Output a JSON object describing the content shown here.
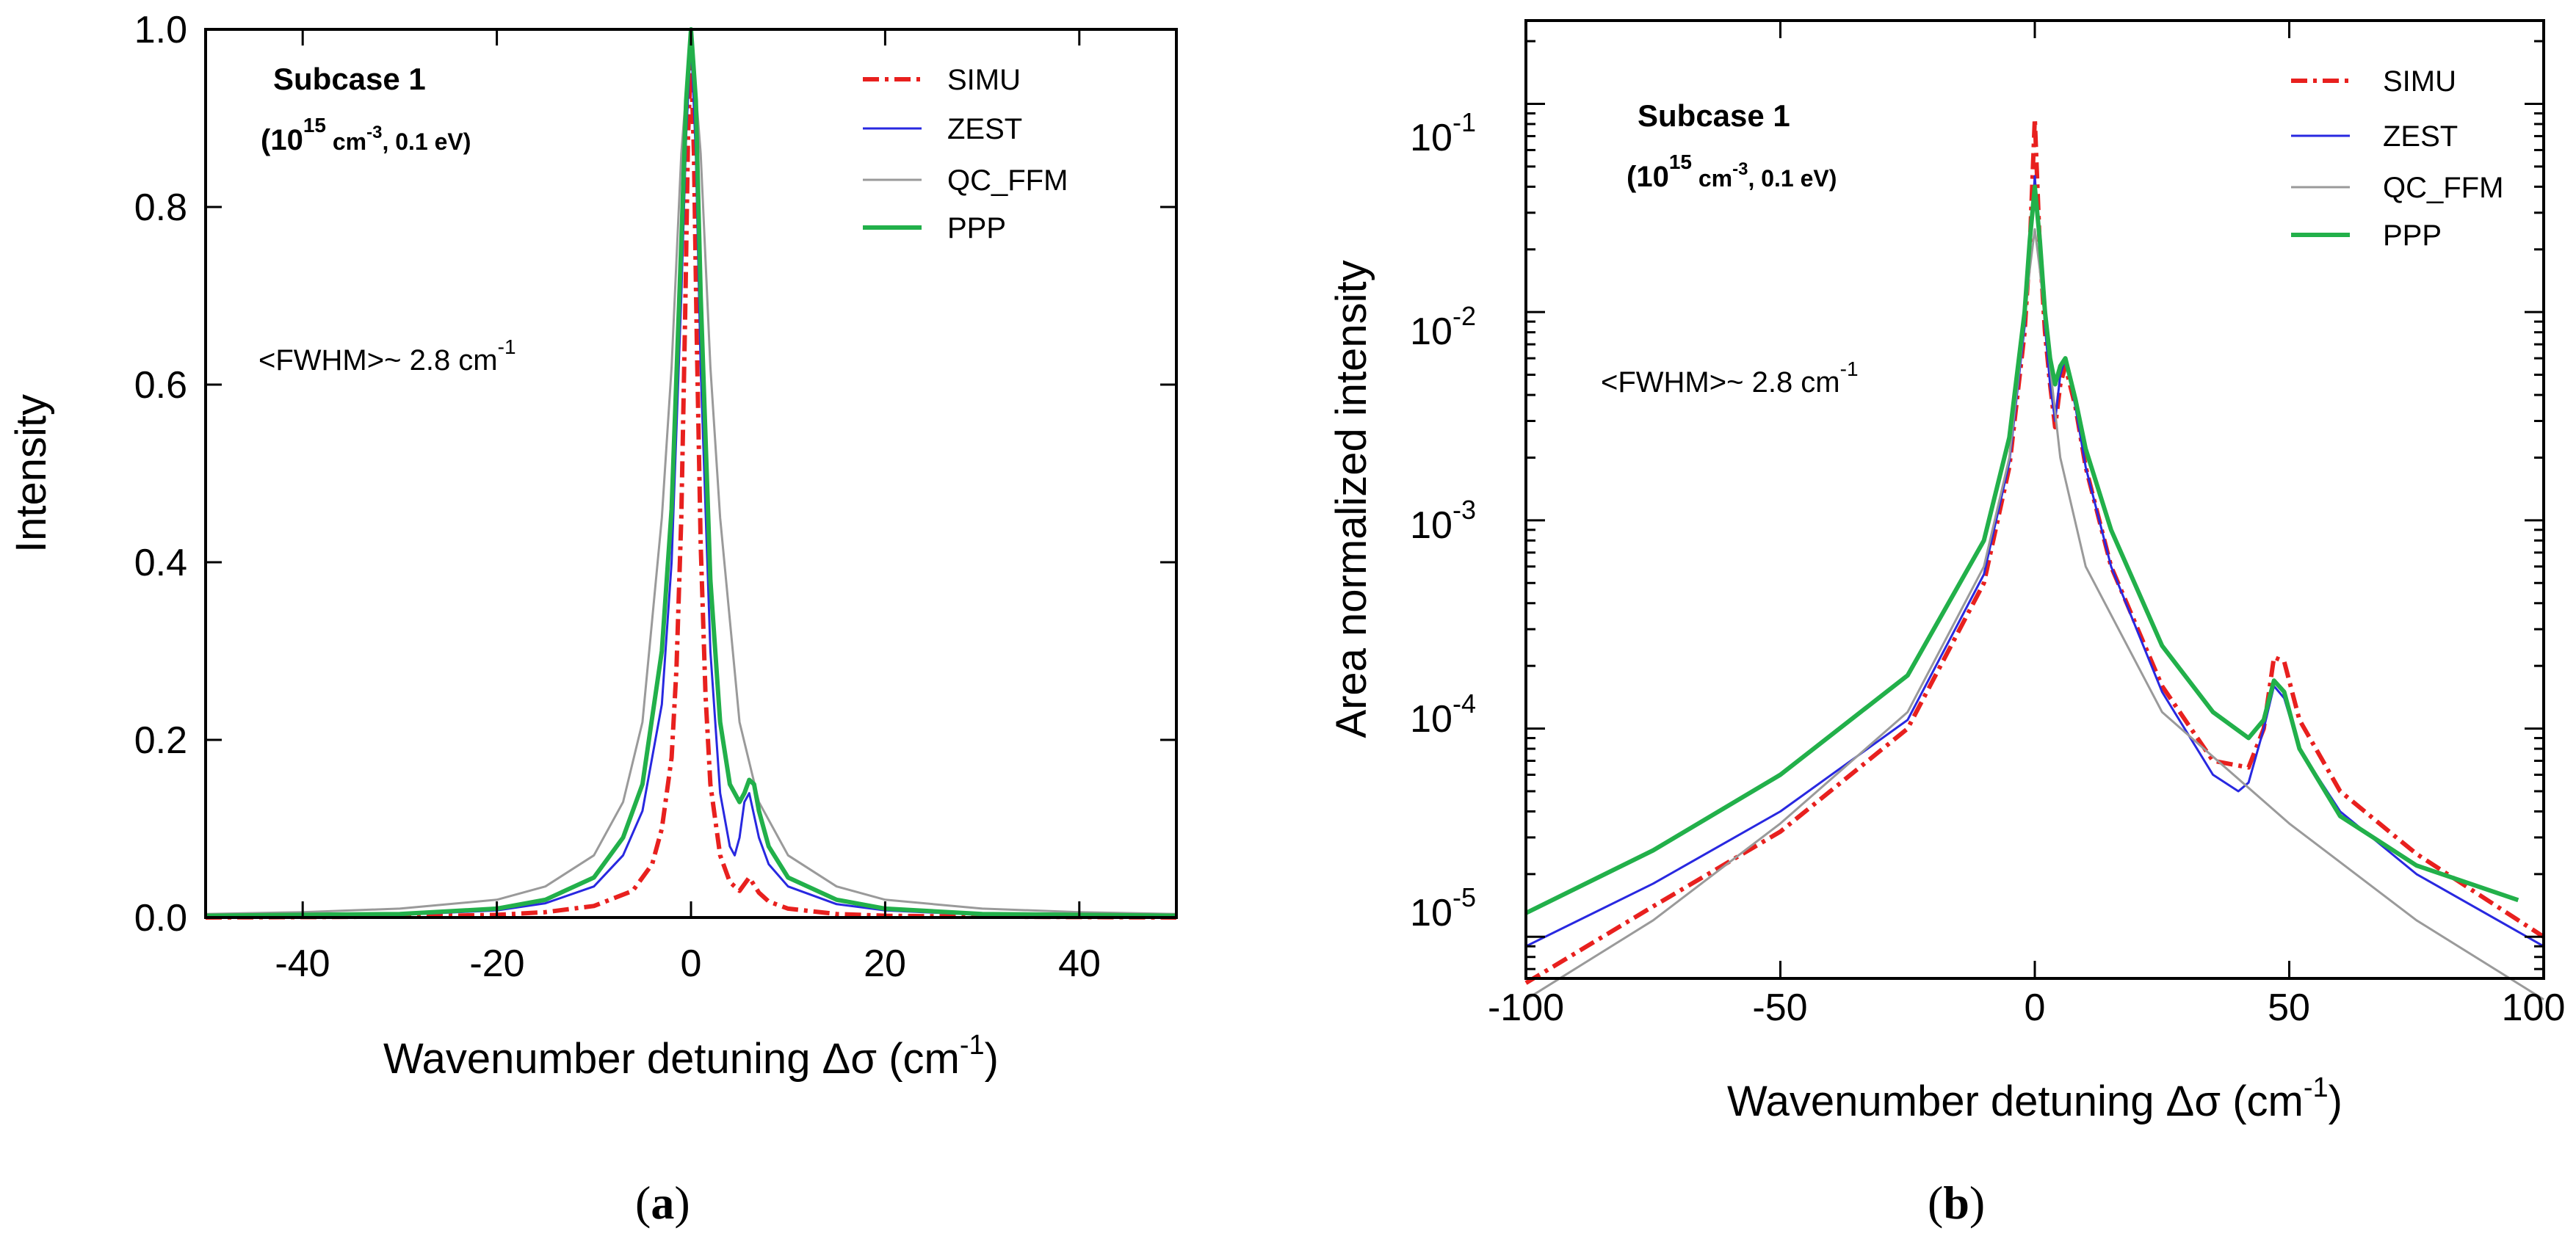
{
  "chart_data": [
    {
      "type": "line",
      "caption": "a",
      "title": "",
      "subcase_label": "Subcase 1",
      "conditions": {
        "prefix": "(10",
        "exp": "15",
        "unit": " cm",
        "unit_exp": "-3",
        "rest": ", 0.1 eV)"
      },
      "fwhm": {
        "text": "<FWHM>~ 2.8 cm",
        "exp": "-1"
      },
      "xlabel": {
        "text": "Wavenumber detuning Δσ (cm",
        "exp": "-1",
        "close": ")"
      },
      "ylabel": "Intensity",
      "xlim": [
        -50,
        50
      ],
      "ylim": [
        0,
        1.0
      ],
      "yscale": "linear",
      "xticks": [
        "-40",
        "-20",
        "0",
        "20",
        "40"
      ],
      "yticks": [
        "0.0",
        "0.2",
        "0.4",
        "0.6",
        "0.8",
        "1.0"
      ],
      "xtick_values": [
        -40,
        -20,
        0,
        20,
        40
      ],
      "ytick_values": [
        0,
        0.2,
        0.4,
        0.6,
        0.8,
        1.0
      ],
      "legend": [
        "SIMU",
        "ZEST",
        "QC_FFM",
        "PPP"
      ],
      "legend_position": "top-right",
      "series": [
        {
          "name": "SIMU",
          "color": "#e8201e",
          "dash": "dashdot",
          "x": [
            -50,
            -30,
            -20,
            -15,
            -10,
            -6,
            -4,
            -3,
            -2,
            -1.5,
            -1,
            -0.6,
            -0.3,
            0,
            0.3,
            0.6,
            1,
            1.5,
            2,
            3,
            4,
            5,
            6,
            7,
            8,
            10,
            15,
            20,
            30,
            50
          ],
          "y": [
            0.0,
            0.001,
            0.003,
            0.006,
            0.013,
            0.03,
            0.06,
            0.1,
            0.18,
            0.28,
            0.45,
            0.68,
            0.88,
            0.97,
            0.86,
            0.65,
            0.42,
            0.25,
            0.15,
            0.07,
            0.04,
            0.03,
            0.045,
            0.028,
            0.018,
            0.01,
            0.004,
            0.002,
            0.001,
            0.0
          ]
        },
        {
          "name": "ZEST",
          "color": "#2828e0",
          "dash": "solid",
          "x": [
            -50,
            -30,
            -20,
            -15,
            -10,
            -7,
            -5,
            -3,
            -2,
            -1,
            -0.5,
            0,
            0.5,
            1,
            2,
            3,
            4,
            4.5,
            5,
            5.5,
            6,
            7,
            8,
            10,
            15,
            20,
            30,
            50
          ],
          "y": [
            0.001,
            0.003,
            0.008,
            0.016,
            0.035,
            0.07,
            0.12,
            0.24,
            0.4,
            0.7,
            0.88,
            0.99,
            0.86,
            0.62,
            0.3,
            0.14,
            0.08,
            0.07,
            0.09,
            0.13,
            0.14,
            0.09,
            0.06,
            0.035,
            0.015,
            0.008,
            0.003,
            0.001
          ]
        },
        {
          "name": "QC_FFM",
          "color": "#9a9a9a",
          "dash": "solid",
          "x": [
            -50,
            -40,
            -30,
            -20,
            -15,
            -10,
            -7,
            -5,
            -3,
            -2,
            -1,
            0,
            1,
            2,
            3,
            5,
            7,
            10,
            15,
            20,
            30,
            40,
            50
          ],
          "y": [
            0.004,
            0.006,
            0.01,
            0.02,
            0.035,
            0.07,
            0.13,
            0.22,
            0.45,
            0.62,
            0.86,
            1.0,
            0.86,
            0.62,
            0.45,
            0.22,
            0.13,
            0.07,
            0.035,
            0.02,
            0.01,
            0.006,
            0.004
          ]
        },
        {
          "name": "PPP",
          "color": "#22b04a",
          "dash": "solid",
          "x": [
            -50,
            -30,
            -20,
            -15,
            -10,
            -7,
            -5,
            -3,
            -2,
            -1,
            -0.5,
            0,
            0.5,
            1,
            2,
            3,
            4,
            5,
            5.5,
            6,
            6.5,
            7,
            8,
            10,
            15,
            20,
            30,
            50
          ],
          "y": [
            0.002,
            0.004,
            0.01,
            0.02,
            0.045,
            0.09,
            0.15,
            0.3,
            0.46,
            0.76,
            0.92,
            1.0,
            0.92,
            0.7,
            0.38,
            0.22,
            0.15,
            0.13,
            0.14,
            0.155,
            0.15,
            0.12,
            0.08,
            0.045,
            0.02,
            0.01,
            0.004,
            0.002
          ]
        }
      ]
    },
    {
      "type": "line",
      "caption": "b",
      "title": "",
      "subcase_label": "Subcase 1",
      "conditions": {
        "prefix": "(10",
        "exp": "15",
        "unit": " cm",
        "unit_exp": "-3",
        "rest": ", 0.1 eV)"
      },
      "fwhm": {
        "text": "<FWHM>~ 2.8 cm",
        "exp": "-1"
      },
      "xlabel": {
        "text": "Wavenumber detuning Δσ (cm",
        "exp": "-1",
        "close": ")"
      },
      "ylabel": "Area normalized intensity",
      "xlim": [
        -100,
        100
      ],
      "ylim_log10": [
        -5.2,
        -0.6
      ],
      "yscale": "log",
      "xticks": [
        "-100",
        "-50",
        "0",
        "50",
        "100"
      ],
      "xtick_values": [
        -100,
        -50,
        0,
        50,
        100
      ],
      "yticks_exp": [
        "-1",
        "-2",
        "-3",
        "-4",
        "-5"
      ],
      "ytick_log10": [
        -1,
        -2,
        -3,
        -4,
        -5
      ],
      "ytick_base": "10",
      "legend": [
        "SIMU",
        "ZEST",
        "QC_FFM",
        "PPP"
      ],
      "legend_position": "top-right",
      "series": [
        {
          "name": "SIMU",
          "color": "#e8201e",
          "dash": "dashdot",
          "x": [
            -100,
            -75,
            -50,
            -25,
            -10,
            -5,
            -2,
            -1,
            0,
            1,
            2,
            3,
            4,
            5,
            6,
            8,
            10,
            15,
            25,
            35,
            42,
            45,
            47,
            49,
            52,
            60,
            75,
            100
          ],
          "y": [
            6e-06,
            1.4e-05,
            3.2e-05,
            0.0001,
            0.0005,
            0.0018,
            0.008,
            0.02,
            0.085,
            0.02,
            0.008,
            0.0045,
            0.0028,
            0.0045,
            0.0055,
            0.0035,
            0.0018,
            0.0006,
            0.00016,
            7e-05,
            6.5e-05,
            0.0001,
            0.00022,
            0.00021,
            0.00011,
            5e-05,
            2.5e-05,
            1e-05
          ]
        },
        {
          "name": "ZEST",
          "color": "#2828e0",
          "dash": "solid",
          "x": [
            -100,
            -75,
            -50,
            -25,
            -10,
            -5,
            -2,
            -1,
            0,
            1,
            2,
            3,
            4,
            5,
            6,
            8,
            10,
            15,
            25,
            35,
            40,
            42,
            45,
            47,
            49,
            52,
            60,
            75,
            100
          ],
          "y": [
            9e-06,
            1.8e-05,
            4e-05,
            0.00011,
            0.00055,
            0.0019,
            0.0085,
            0.02,
            0.045,
            0.02,
            0.0085,
            0.0045,
            0.003,
            0.005,
            0.006,
            0.0035,
            0.0018,
            0.0006,
            0.00015,
            6e-05,
            5e-05,
            5.5e-05,
            0.0001,
            0.00016,
            0.00014,
            8e-05,
            4e-05,
            2e-05,
            9e-06
          ]
        },
        {
          "name": "QC_FFM",
          "color": "#9a9a9a",
          "dash": "solid",
          "x": [
            -100,
            -75,
            -50,
            -25,
            -10,
            -5,
            -2,
            -1,
            0,
            1,
            2,
            5,
            10,
            25,
            50,
            75,
            100
          ],
          "y": [
            5e-06,
            1.2e-05,
            3.5e-05,
            0.00012,
            0.0006,
            0.002,
            0.009,
            0.016,
            0.025,
            0.016,
            0.009,
            0.002,
            0.0006,
            0.00012,
            3.5e-05,
            1.2e-05,
            5e-06
          ]
        },
        {
          "name": "PPP",
          "color": "#22b04a",
          "dash": "solid",
          "x": [
            -100,
            -75,
            -50,
            -25,
            -10,
            -5,
            -2,
            -1,
            0,
            1,
            2,
            3,
            4,
            5,
            6,
            8,
            10,
            15,
            25,
            35,
            42,
            45,
            47,
            49,
            52,
            60,
            75,
            95
          ],
          "y": [
            1.3e-05,
            2.6e-05,
            6e-05,
            0.00018,
            0.0008,
            0.0025,
            0.01,
            0.022,
            0.04,
            0.022,
            0.01,
            0.006,
            0.0045,
            0.0055,
            0.006,
            0.0038,
            0.0022,
            0.0009,
            0.00025,
            0.00012,
            9e-05,
            0.00011,
            0.00017,
            0.00015,
            8e-05,
            3.8e-05,
            2.2e-05,
            1.5e-05
          ]
        }
      ]
    }
  ]
}
